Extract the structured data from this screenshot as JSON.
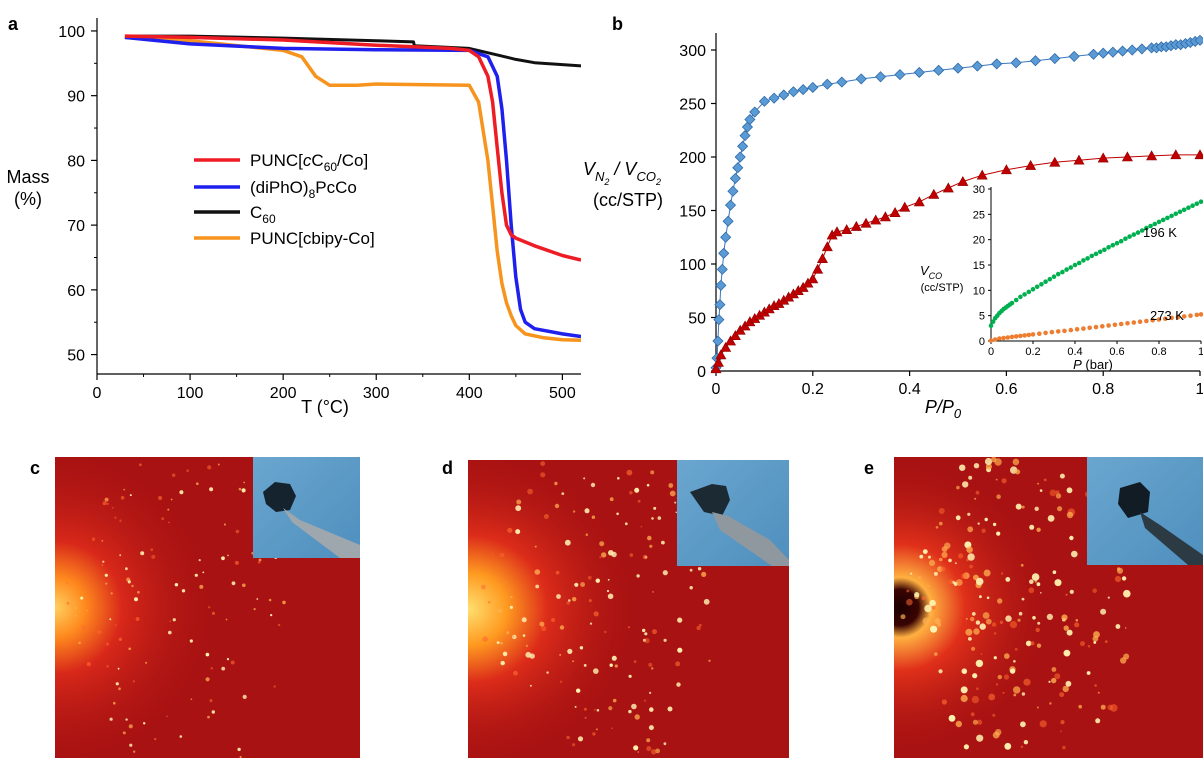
{
  "chart_data": [
    {
      "type": "line",
      "panel": "a",
      "xlabel": "T (°C)",
      "ylabel": [
        "Mass",
        "(%)"
      ],
      "xlim": [
        0,
        520
      ],
      "ylim": [
        47,
        102
      ],
      "xticks": [
        0,
        100,
        200,
        300,
        400,
        500
      ],
      "yticks": [
        50,
        60,
        70,
        80,
        90,
        100
      ],
      "legend_placement": "center-left",
      "legend": [
        {
          "base": "PUNC[",
          "it": "c",
          "mid": "C",
          "sub": "60",
          "tail": "/Co]"
        },
        {
          "base": "(diPhO)",
          "sub": "8",
          "tail": "PcCo"
        },
        {
          "base": "C",
          "sub": "60",
          "tail": ""
        },
        {
          "base": "PUNC[cbipy-Co]",
          "tail": ""
        }
      ],
      "series": [
        {
          "color": "#ee1c24",
          "x": [
            30,
            100,
            200,
            300,
            380,
            400,
            410,
            420,
            425,
            430,
            435,
            440,
            445,
            450,
            470,
            500,
            520
          ],
          "y": [
            99.2,
            99.0,
            98.6,
            97.8,
            97.3,
            97.0,
            96.0,
            93.0,
            89.0,
            82.0,
            75.0,
            70.0,
            68.5,
            68.0,
            66.8,
            65.3,
            64.6
          ]
        },
        {
          "color": "#2020ee",
          "x": [
            30,
            100,
            200,
            300,
            400,
            420,
            430,
            435,
            440,
            445,
            450,
            455,
            460,
            470,
            500,
            520
          ],
          "y": [
            99.0,
            98.0,
            97.3,
            97.1,
            97.0,
            96.0,
            93.0,
            88.0,
            80.0,
            70.0,
            62.0,
            57.0,
            55.0,
            54.0,
            53.2,
            52.8
          ]
        },
        {
          "color": "#111111",
          "x": [
            30,
            100,
            200,
            300,
            340,
            341,
            400,
            430,
            450,
            470,
            500,
            520
          ],
          "y": [
            99.2,
            99.2,
            98.9,
            98.5,
            98.3,
            97.7,
            97.3,
            96.3,
            95.6,
            95.1,
            94.8,
            94.6
          ]
        },
        {
          "color": "#f7941d",
          "x": [
            30,
            100,
            200,
            220,
            235,
            250,
            280,
            300,
            400,
            410,
            420,
            425,
            430,
            435,
            440,
            445,
            450,
            460,
            480,
            500,
            520
          ],
          "y": [
            99.0,
            98.5,
            97.0,
            96.0,
            93.0,
            91.6,
            91.6,
            91.8,
            91.6,
            89.0,
            80.0,
            73.0,
            66.0,
            61.0,
            58.0,
            56.0,
            54.5,
            53.2,
            52.6,
            52.3,
            52.2
          ]
        }
      ]
    },
    {
      "type": "scatter",
      "panel": "b",
      "xlabel": "P/P0",
      "ylabel_main": "V",
      "ylabel_n2": "N",
      "ylabel_co2": "CO",
      "ylabel_unit": "(cc/STP)",
      "xlim": [
        0,
        1
      ],
      "ylim": [
        0,
        310
      ],
      "xticks": [
        "0",
        "0.2",
        "0.4",
        "0.6",
        "0.8",
        "1"
      ],
      "yticks": [
        0,
        50,
        100,
        150,
        200,
        250,
        300
      ],
      "series": [
        {
          "marker": "diamond",
          "color": "#5b9bd5",
          "x": [
            0.0,
            0.002,
            0.004,
            0.006,
            0.008,
            0.01,
            0.013,
            0.016,
            0.02,
            0.025,
            0.03,
            0.035,
            0.04,
            0.045,
            0.05,
            0.055,
            0.06,
            0.065,
            0.07,
            0.08,
            0.1,
            0.12,
            0.14,
            0.16,
            0.18,
            0.2,
            0.23,
            0.26,
            0.3,
            0.34,
            0.38,
            0.42,
            0.46,
            0.5,
            0.54,
            0.58,
            0.62,
            0.66,
            0.7,
            0.74,
            0.78,
            0.8,
            0.82,
            0.84,
            0.86,
            0.88,
            0.9,
            0.91,
            0.92,
            0.93,
            0.94,
            0.95,
            0.96,
            0.97,
            0.98,
            0.99,
            1.0
          ],
          "y": [
            3,
            12,
            28,
            48,
            62,
            80,
            95,
            110,
            125,
            140,
            155,
            168,
            180,
            190,
            200,
            210,
            220,
            228,
            235,
            242,
            252,
            255,
            258,
            261,
            263,
            265,
            268,
            270,
            273,
            275,
            277,
            279,
            281,
            283,
            285,
            287,
            288,
            290,
            292,
            294,
            296,
            297,
            298,
            299,
            300,
            301,
            302,
            302,
            303,
            303,
            304,
            305,
            305,
            306,
            307,
            308,
            309
          ]
        },
        {
          "marker": "triangle",
          "color": "#c00000",
          "x": [
            0.0,
            0.005,
            0.01,
            0.02,
            0.03,
            0.04,
            0.05,
            0.06,
            0.07,
            0.08,
            0.09,
            0.1,
            0.11,
            0.12,
            0.13,
            0.14,
            0.15,
            0.16,
            0.17,
            0.18,
            0.19,
            0.2,
            0.21,
            0.22,
            0.23,
            0.24,
            0.25,
            0.27,
            0.29,
            0.31,
            0.33,
            0.35,
            0.37,
            0.39,
            0.42,
            0.45,
            0.48,
            0.51,
            0.55,
            0.6,
            0.65,
            0.7,
            0.75,
            0.8,
            0.85,
            0.9,
            0.95,
            1.0
          ],
          "y": [
            2,
            8,
            15,
            22,
            28,
            33,
            38,
            42,
            46,
            49,
            52,
            55,
            58,
            61,
            63,
            66,
            69,
            72,
            75,
            78,
            82,
            86,
            95,
            105,
            116,
            127,
            130,
            132,
            135,
            138,
            141,
            144,
            148,
            153,
            158,
            165,
            171,
            177,
            183,
            188,
            192,
            195,
            197,
            199,
            200,
            201,
            202,
            202
          ]
        }
      ]
    },
    {
      "type": "scatter",
      "panel": "b-inset",
      "xlabel_main": "P",
      "xlabel_unit": " (bar)",
      "ylabel_main": "V",
      "ylabel_sub": "CO",
      "ylabel_unit": "(cc/STP)",
      "xlim": [
        0,
        1
      ],
      "ylim": [
        0,
        30
      ],
      "xticks": [
        "0",
        "0.2",
        "0.4",
        "0.6",
        "0.8",
        "1"
      ],
      "yticks": [
        "0",
        "5",
        "10",
        "15",
        "20",
        "25",
        "30"
      ],
      "annotations": [
        "196 K",
        "273 K"
      ],
      "series": [
        {
          "name": "196 K",
          "color": "#00b050",
          "x": [
            0.0,
            0.01,
            0.02,
            0.03,
            0.04,
            0.05,
            0.06,
            0.07,
            0.08,
            0.09,
            0.1,
            0.12,
            0.14,
            0.16,
            0.18,
            0.2,
            0.22,
            0.24,
            0.26,
            0.28,
            0.3,
            0.32,
            0.34,
            0.36,
            0.38,
            0.4,
            0.42,
            0.44,
            0.46,
            0.48,
            0.5,
            0.52,
            0.54,
            0.56,
            0.58,
            0.6,
            0.62,
            0.64,
            0.66,
            0.68,
            0.7,
            0.72,
            0.74,
            0.76,
            0.78,
            0.8,
            0.82,
            0.84,
            0.86,
            0.88,
            0.9,
            0.92,
            0.94,
            0.96,
            0.98,
            1.0
          ],
          "y": [
            3.0,
            3.8,
            4.5,
            5.0,
            5.5,
            5.9,
            6.3,
            6.6,
            6.9,
            7.2,
            7.5,
            8.1,
            8.7,
            9.2,
            9.7,
            10.2,
            10.7,
            11.2,
            11.7,
            12.2,
            12.7,
            13.2,
            13.6,
            14.1,
            14.5,
            15.0,
            15.4,
            15.9,
            16.3,
            16.8,
            17.2,
            17.6,
            18.0,
            18.5,
            18.9,
            19.3,
            19.7,
            20.2,
            20.6,
            21.0,
            21.4,
            21.8,
            22.3,
            22.7,
            23.1,
            23.5,
            23.9,
            24.3,
            24.7,
            25.1,
            25.5,
            25.9,
            26.3,
            26.7,
            27.1,
            27.5
          ]
        },
        {
          "name": "273 K",
          "color": "#ed7d31",
          "x": [
            0.0,
            0.02,
            0.04,
            0.06,
            0.08,
            0.1,
            0.12,
            0.14,
            0.16,
            0.18,
            0.2,
            0.23,
            0.26,
            0.29,
            0.32,
            0.35,
            0.38,
            0.41,
            0.44,
            0.47,
            0.5,
            0.53,
            0.56,
            0.59,
            0.62,
            0.65,
            0.68,
            0.71,
            0.74,
            0.77,
            0.8,
            0.83,
            0.86,
            0.89,
            0.92,
            0.95,
            0.98,
            1.0
          ],
          "y": [
            0.1,
            0.3,
            0.5,
            0.6,
            0.7,
            0.8,
            0.9,
            1.0,
            1.1,
            1.2,
            1.3,
            1.45,
            1.6,
            1.75,
            1.9,
            2.0,
            2.15,
            2.3,
            2.45,
            2.6,
            2.75,
            2.9,
            3.05,
            3.2,
            3.35,
            3.5,
            3.65,
            3.8,
            3.95,
            4.1,
            4.25,
            4.4,
            4.55,
            4.7,
            4.85,
            5.0,
            5.15,
            5.25
          ]
        }
      ]
    }
  ],
  "images": [
    {
      "panel": "c",
      "intensity": 0.6
    },
    {
      "panel": "d",
      "intensity": 0.8
    },
    {
      "panel": "e",
      "intensity": 1.0
    }
  ]
}
